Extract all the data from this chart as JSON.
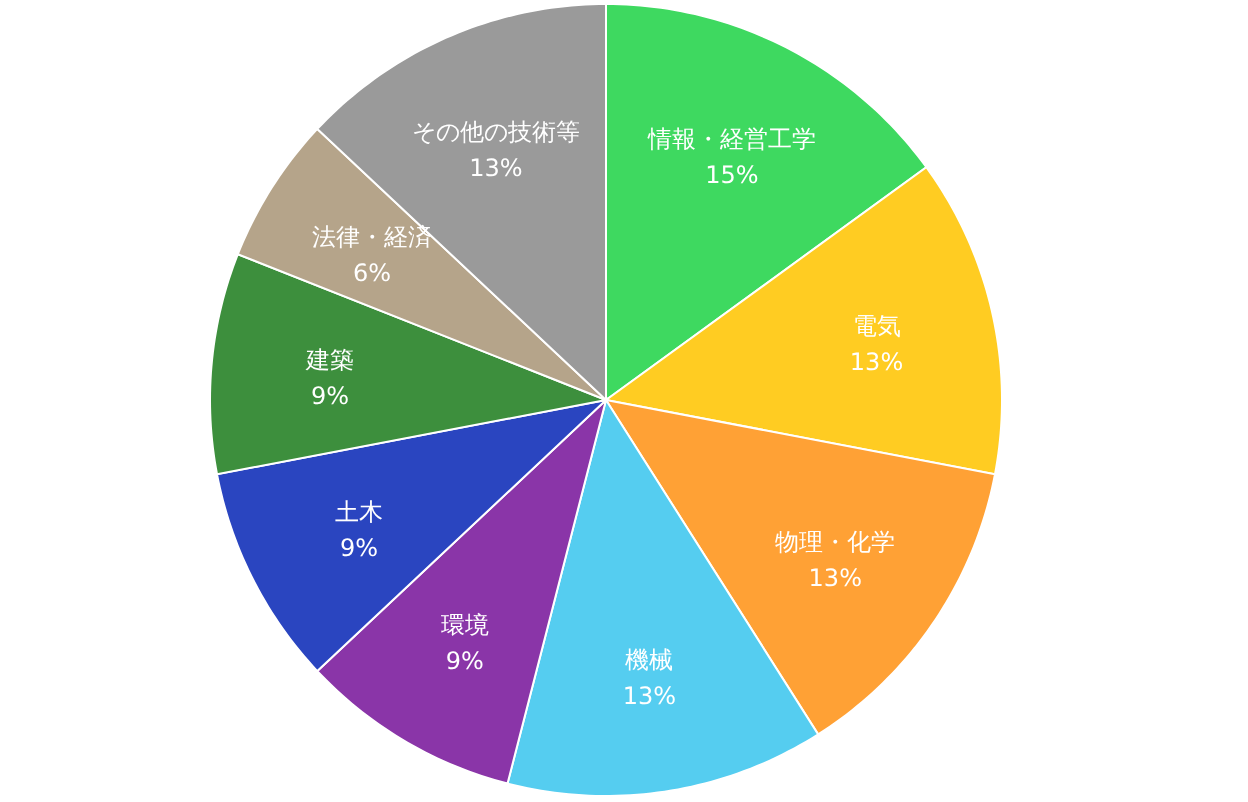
{
  "chart_data": {
    "type": "pie",
    "categories": [
      "情報・経営工学",
      "電気",
      "物理・化学",
      "機械",
      "環境",
      "土木",
      "建築",
      "法律・経済",
      "その他の技術等"
    ],
    "values": [
      15,
      13,
      13,
      13,
      9,
      9,
      9,
      6,
      13
    ],
    "value_labels": [
      "15%",
      "13%",
      "13%",
      "13%",
      "9%",
      "9%",
      "9%",
      "6%",
      "13%"
    ],
    "colors": [
      "#3ed960",
      "#ffcc22",
      "#ffa135",
      "#55cdf0",
      "#8a35a8",
      "#2a45c0",
      "#3d8f3d",
      "#b5a48a",
      "#9a9a9a"
    ]
  }
}
